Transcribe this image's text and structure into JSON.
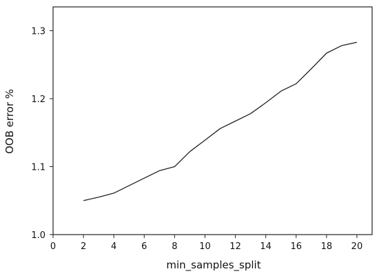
{
  "chart_data": {
    "type": "line",
    "title": "",
    "xlabel": "min_samples_split",
    "ylabel": "OOB error %",
    "xlim": [
      0,
      21
    ],
    "ylim": [
      1.0,
      1.335
    ],
    "xticks": [
      0,
      2,
      4,
      6,
      8,
      10,
      12,
      14,
      16,
      18,
      20
    ],
    "yticks": [
      1.0,
      1.1,
      1.2,
      1.3
    ],
    "ytick_labels": [
      "1.0",
      "1.1",
      "1.2",
      "1.3"
    ],
    "grid": false,
    "legend": "none",
    "series": [
      {
        "x": [
          2,
          3,
          4,
          5,
          6,
          7,
          8,
          9,
          10,
          11,
          12,
          13,
          14,
          15,
          16,
          17,
          18,
          19,
          20
        ],
        "y": [
          1.05,
          1.055,
          1.061,
          1.072,
          1.083,
          1.094,
          1.1,
          1.122,
          1.139,
          1.156,
          1.167,
          1.178,
          1.194,
          1.211,
          1.222,
          1.244,
          1.267,
          1.278,
          1.283
        ],
        "color": "#222222"
      }
    ]
  }
}
